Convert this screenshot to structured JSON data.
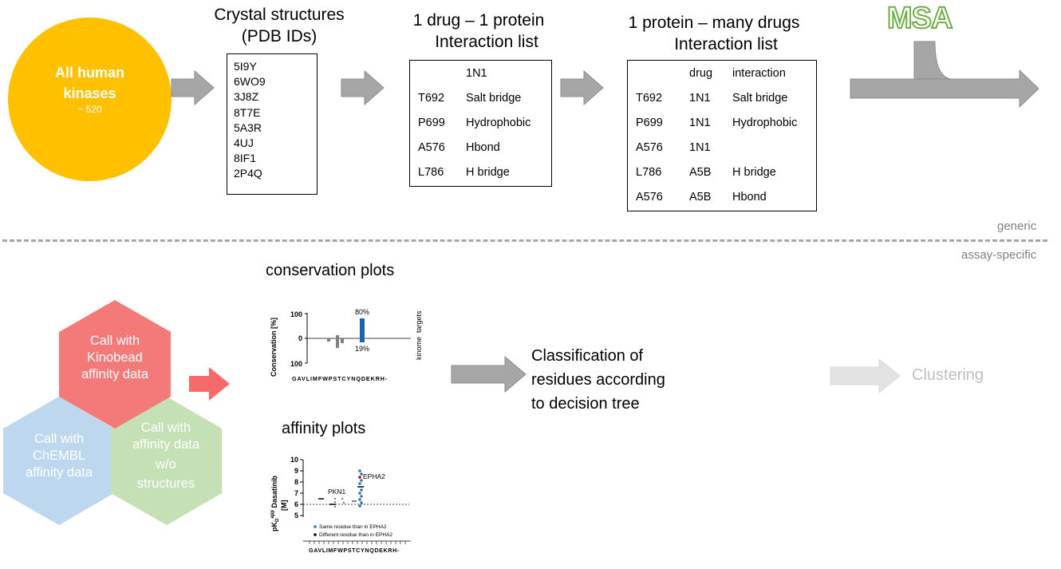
{
  "kinase_circle": {
    "title_line1": "All human",
    "title_line2": "kinases",
    "count": "~ 520"
  },
  "pdb": {
    "heading_line1": "Crystal structures",
    "heading_line2": "(PDB IDs)",
    "ids": [
      "5I9Y",
      "6WO9",
      "3J8Z",
      "8T7E",
      "5A3R",
      "4UJ",
      "8IF1",
      "2P4Q"
    ]
  },
  "one_drug": {
    "heading_line1": "1 drug – 1 protein",
    "heading_line2": "Interaction list",
    "drug_header": "1N1",
    "rows": [
      {
        "residue": "T692",
        "interaction": "Salt bridge"
      },
      {
        "residue": "P699",
        "interaction": "Hydrophobic"
      },
      {
        "residue": "A576",
        "interaction": "Hbond"
      },
      {
        "residue": "L786",
        "interaction": "H bridge"
      }
    ]
  },
  "many_drugs": {
    "heading_line1": "1 protein – many drugs",
    "heading_line2": "Interaction list",
    "col_drug": "drug",
    "col_interaction": "interaction",
    "rows": [
      {
        "residue": "T692",
        "drug": "1N1",
        "interaction": "Salt bridge"
      },
      {
        "residue": "P699",
        "drug": "1N1",
        "interaction": "Hydrophobic"
      },
      {
        "residue": "A576",
        "drug": "1N1",
        "interaction": ""
      },
      {
        "residue": "L786",
        "drug": "A5B",
        "interaction": "H bridge"
      },
      {
        "residue": "A576",
        "drug": "A5B",
        "interaction": "Hbond"
      }
    ]
  },
  "msa_label": "MSA",
  "divider": {
    "top_label": "generic",
    "bottom_label": "assay-specific"
  },
  "hexagons": {
    "kinobead": [
      "Call with",
      "Kinobead",
      "affinity data"
    ],
    "chembl": [
      "Call with",
      "ChEMBL",
      "affinity data"
    ],
    "no_structures": [
      "Call with",
      "affinity data",
      "w/o",
      "structures"
    ]
  },
  "conservation": {
    "heading": "conservation plots",
    "ylabel": "Conservation [%]",
    "right_label_top": "targets",
    "right_label_bottom": "kinome",
    "ticks": [
      "100",
      "0",
      "100"
    ],
    "label_top": "80%",
    "label_bottom": "19%",
    "residues": "GAVLIMFWPSTCYNQDEKRH-"
  },
  "affinity": {
    "heading": "affinity plots",
    "ylabel_line1": "pK",
    "ylabel_sub": "D",
    "ylabel_sup": "app",
    "ylabel_rest": " Dasatinib",
    "ylabel_line2": "[M]",
    "ticks": [
      "10",
      "9",
      "8",
      "7",
      "6",
      "5"
    ],
    "label_pkn1": "PKN1",
    "label_epha2": "EPHA2",
    "legend_same": "Same residue than in EPHA2",
    "legend_diff": "Different residue than in EPHA2",
    "residues": "GAVLIMFWPSTCYNQDEKRH-"
  },
  "classification": {
    "line1": "Classification of",
    "line2": "residues according",
    "line3": "to decision tree"
  },
  "clustering_label": "Clustering",
  "colors": {
    "circle": "#FFC000",
    "arrow_gray": "#A6A6A6",
    "arrow_red": "#F86A6A",
    "hex_red": "#F47A7A",
    "hex_blue": "#BDD7EE",
    "hex_green": "#C5E0B4",
    "bar_blue": "#1F5FAF",
    "msa_green": "#70AD47",
    "faded": "#D9D9D9"
  }
}
